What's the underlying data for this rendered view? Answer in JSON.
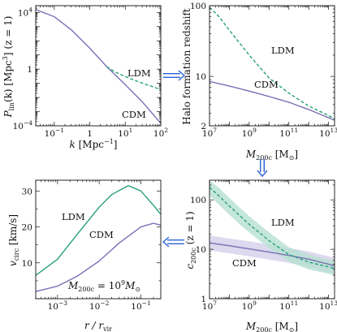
{
  "colors": {
    "cdm": "#7a6fb6",
    "ldm": "#27a17a",
    "cdm_band": "#d4cfea",
    "ldm_band": "#b6e0d1",
    "arrow": "#2b63d6"
  },
  "panels": {
    "power": {
      "ylabel_main": "P",
      "ylabel_sub": "lin",
      "ylabel_rest": "(k)  [Mpc",
      "ylabel_exp": "3",
      "ylabel_end": "]",
      "ylabel_z": "(z = 1)",
      "xlabel_main": "k",
      "xlabel_rest": "[Mpc",
      "xlabel_exp": "−1",
      "xlabel_end": "]",
      "label_ldm": "LDM",
      "label_cdm": "CDM"
    },
    "zform": {
      "ylabel": "Halo formation redshift",
      "xlabel_main": "M",
      "xlabel_sub": "200c",
      "xlabel_rest": "[M",
      "xlabel_sun": "⊙",
      "xlabel_end": "]",
      "label_ldm": "LDM",
      "label_cdm": "CDM"
    },
    "vcirc": {
      "ylabel_main": "v",
      "ylabel_sub": "circ",
      "ylabel_rest": "[km/s]",
      "xlabel": "r / r",
      "xlabel_sub": "vir",
      "label_ldm": "LDM",
      "label_cdm": "CDM",
      "annotation_main": "M",
      "annotation_sub": "200c",
      "annotation_eq": "= 10",
      "annotation_exp": "9",
      "annotation_unit": "M",
      "annotation_sun": "⊙"
    },
    "conc": {
      "ylabel_main": "c",
      "ylabel_sub": "200c",
      "ylabel_z": "(z = 1)",
      "xlabel_main": "M",
      "xlabel_sub": "200c",
      "xlabel_rest": "[M",
      "xlabel_sun": "⊙",
      "xlabel_end": "]",
      "label_ldm": "LDM",
      "label_cdm": "CDM"
    }
  },
  "chart_data": [
    {
      "type": "line",
      "xscale": "log",
      "yscale": "log",
      "xlim": [
        0.03,
        100
      ],
      "ylim": [
        0.0001,
        30000
      ],
      "xticks": [
        {
          "v": 0.1,
          "b": "10",
          "e": "−1"
        },
        {
          "v": 1,
          "b": "1",
          "e": ""
        },
        {
          "v": 10,
          "b": "10",
          "e": "1"
        },
        {
          "v": 100,
          "b": "10",
          "e": "2"
        }
      ],
      "yticks": [
        {
          "v": 0.0001,
          "b": "10",
          "e": "−4"
        },
        {
          "v": 1,
          "b": "1",
          "e": ""
        },
        {
          "v": 10000,
          "b": "10",
          "e": "4"
        }
      ],
      "series": [
        {
          "name": "CDM",
          "style": "solid",
          "x": [
            0.03,
            0.1,
            0.3,
            1,
            3,
            10,
            30,
            100
          ],
          "y": [
            16000,
            5000,
            600,
            30,
            1.5,
            0.08,
            0.005,
            0.00015
          ]
        },
        {
          "name": "LDM",
          "style": "dashed",
          "x": [
            3,
            5,
            10,
            20,
            40,
            70,
            100
          ],
          "y": [
            1.5,
            0.65,
            0.3,
            0.15,
            0.08,
            0.05,
            0.035
          ]
        }
      ]
    },
    {
      "type": "line",
      "xscale": "log",
      "yscale": "log",
      "xlim": [
        10000000,
        20000000000000
      ],
      "ylim": [
        2,
        100
      ],
      "xticks": [
        {
          "v": 10000000,
          "b": "10",
          "e": "7"
        },
        {
          "v": 1000000000,
          "b": "10",
          "e": "9"
        },
        {
          "v": 100000000000,
          "b": "10",
          "e": "11"
        },
        {
          "v": 10000000000000,
          "b": "10",
          "e": "13"
        }
      ],
      "yticks": [
        {
          "v": 10,
          "b": "10",
          "e": ""
        },
        {
          "v": 100,
          "b": "100",
          "e": ""
        }
      ],
      "yticks_minor_labels": [
        {
          "v": 2,
          "b": "2",
          "e": ""
        }
      ],
      "series": [
        {
          "name": "CDM",
          "style": "solid",
          "x": [
            10000000,
            100000000,
            1000000000,
            10000000000,
            100000000000,
            1000000000000,
            10000000000000,
            20000000000000
          ],
          "y": [
            8.5,
            7.3,
            6.2,
            5.2,
            4.3,
            3.4,
            2.6,
            2.4
          ]
        },
        {
          "name": "LDM",
          "style": "dashed",
          "x": [
            10000000,
            30000000,
            100000000,
            1000000000,
            10000000000,
            100000000000,
            1000000000000,
            10000000000000,
            20000000000000
          ],
          "y": [
            95,
            70,
            45,
            20,
            9.5,
            5.8,
            3.8,
            2.8,
            2.5
          ]
        }
      ]
    },
    {
      "type": "line",
      "xscale": "log",
      "yscale": "linear",
      "xlim": [
        0.0003,
        0.3
      ],
      "ylim": [
        0,
        33
      ],
      "xticks": [
        {
          "v": 0.001,
          "b": "10",
          "e": "−3"
        },
        {
          "v": 0.01,
          "b": "10",
          "e": "−2"
        },
        {
          "v": 0.1,
          "b": "10",
          "e": "−1"
        }
      ],
      "yticks": [
        {
          "v": 10,
          "b": "10",
          "e": ""
        },
        {
          "v": 20,
          "b": "20",
          "e": ""
        },
        {
          "v": 30,
          "b": "30",
          "e": ""
        }
      ],
      "series": [
        {
          "name": "LDM",
          "style": "solid",
          "x": [
            0.0003,
            0.001,
            0.003,
            0.01,
            0.02,
            0.05,
            0.1,
            0.2,
            0.3
          ],
          "y": [
            6.5,
            11,
            18,
            25.5,
            29,
            31.5,
            30,
            26,
            23.5
          ]
        },
        {
          "name": "CDM",
          "style": "solid",
          "x": [
            0.0003,
            0.001,
            0.003,
            0.01,
            0.03,
            0.1,
            0.2,
            0.3
          ],
          "y": [
            2,
            3.5,
            6.3,
            10.5,
            15.5,
            20,
            21,
            20.5
          ]
        }
      ]
    },
    {
      "type": "area",
      "xscale": "log",
      "yscale": "log",
      "xlim": [
        10000000,
        20000000000000
      ],
      "ylim": [
        1,
        250
      ],
      "xticks": [
        {
          "v": 10000000,
          "b": "10",
          "e": "7"
        },
        {
          "v": 1000000000,
          "b": "10",
          "e": "9"
        },
        {
          "v": 100000000000,
          "b": "10",
          "e": "11"
        },
        {
          "v": 10000000000000,
          "b": "10",
          "e": "13"
        }
      ],
      "yticks": [
        {
          "v": 1,
          "b": "1",
          "e": ""
        },
        {
          "v": 10,
          "b": "10",
          "e": ""
        },
        {
          "v": 100,
          "b": "100",
          "e": ""
        }
      ],
      "series": [
        {
          "name": "CDM",
          "style": "solid",
          "x": [
            10000000,
            100000000,
            1000000000,
            10000000000,
            100000000000,
            1000000000000,
            10000000000000,
            20000000000000
          ],
          "y": [
            13.5,
            11.8,
            10.2,
            8.8,
            7.5,
            6.3,
            5,
            4.6
          ],
          "band_lower": [
            9.5,
            8.3,
            7.2,
            6.2,
            5.3,
            4.4,
            3.4,
            3.1
          ],
          "band_upper": [
            19,
            16.5,
            14.5,
            12.5,
            10.6,
            9,
            7.2,
            6.6
          ]
        },
        {
          "name": "LDM",
          "style": "dashed",
          "x": [
            10000000,
            30000000,
            100000000,
            300000000,
            1000000000,
            10000000000,
            100000000000,
            1000000000000,
            10000000000000,
            20000000000000
          ],
          "y": [
            180,
            120,
            75,
            50,
            32,
            15,
            7.8,
            5.5,
            4.4,
            4.1
          ],
          "band_lower": [
            120,
            80,
            50,
            33,
            22,
            10.5,
            5.6,
            3.9,
            3.2,
            3
          ],
          "band_upper": [
            250,
            175,
            110,
            72,
            47,
            22,
            11,
            7.8,
            6.2,
            5.8
          ]
        }
      ]
    }
  ]
}
